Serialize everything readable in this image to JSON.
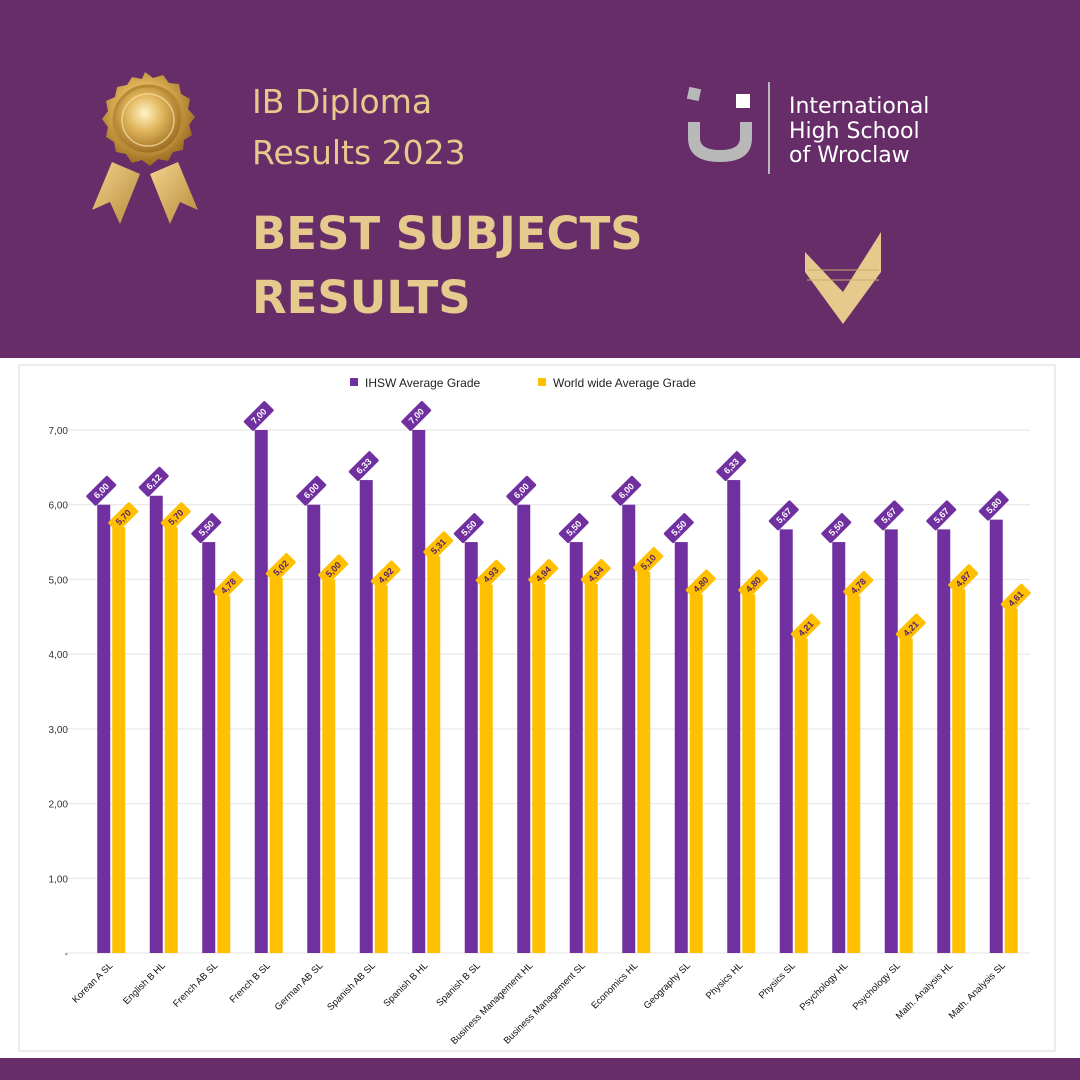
{
  "header": {
    "title_line1": "IB Diploma",
    "title_line2": "Results 2023",
    "headline_line1": "BEST SUBJECTS",
    "headline_line2": "RESULTS",
    "logo_line1": "International",
    "logo_line2": "High School",
    "logo_line3": "of Wroclaw",
    "medal_icon": "medal-icon",
    "arrow_icon": "chevron-down-icon"
  },
  "colors": {
    "background": "#662d69",
    "accent_gold": "#e5c98d",
    "series_purple": "#7030a0",
    "series_gold": "#ffc000"
  },
  "chart_data": {
    "type": "bar",
    "categories": [
      "Korean A SL",
      "English B HL",
      "French AB SL",
      "French B SL",
      "German AB SL",
      "Spanish AB SL",
      "Spanish B HL",
      "Spanish B SL",
      "Business Management HL",
      "Business Management SL",
      "Economics HL",
      "Geography SL",
      "Physics HL",
      "Physics SL",
      "Psychology HL",
      "Psychology SL",
      "Math. Analysis HL",
      "Math. Analysis SL"
    ],
    "series": [
      {
        "name": "IHSW Average Grade",
        "color": "#7030a0",
        "values": [
          6.0,
          6.12,
          5.5,
          7.0,
          6.0,
          6.33,
          7.0,
          5.5,
          6.0,
          5.5,
          6.0,
          5.5,
          6.33,
          5.67,
          5.5,
          5.67,
          5.67,
          5.8
        ],
        "labels": [
          "6,00",
          "6,12",
          "5,50",
          "7,00",
          "6,00",
          "6,33",
          "7,00",
          "5,50",
          "6,00",
          "5,50",
          "6,00",
          "5,50",
          "6,33",
          "5,67",
          "5,50",
          "5,67",
          "5,67",
          "5,80"
        ]
      },
      {
        "name": "World wide Average Grade",
        "color": "#ffc000",
        "values": [
          5.7,
          5.7,
          4.78,
          5.02,
          5.0,
          4.92,
          5.31,
          4.93,
          4.94,
          4.94,
          5.1,
          4.8,
          4.8,
          4.21,
          4.78,
          4.21,
          4.87,
          4.61
        ],
        "labels": [
          "5,70",
          "5,70",
          "4,78",
          "5,02",
          "5,00",
          "4,92",
          "5,31",
          "4,93",
          "4,94",
          "4,94",
          "5,10",
          "4,80",
          "4,80",
          "4,21",
          "4,78",
          "4,21",
          "4,87",
          "4,61"
        ]
      }
    ],
    "ylim": [
      0,
      7
    ],
    "y_ticks": [
      0,
      1,
      2,
      3,
      4,
      5,
      6,
      7
    ],
    "y_tick_labels": [
      "-",
      "1,00",
      "2,00",
      "3,00",
      "4,00",
      "5,00",
      "6,00",
      "7,00"
    ],
    "grid": true,
    "legend_position": "top-center"
  }
}
